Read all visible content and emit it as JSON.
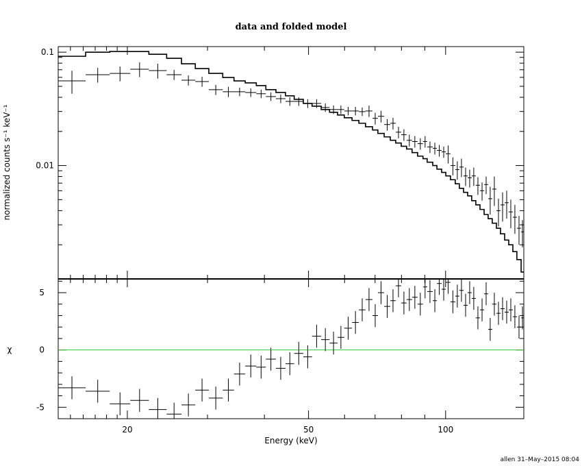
{
  "chart_data": [
    {
      "type": "spectrum",
      "title": "data and folded model",
      "ylabel": "normalized counts s⁻¹ keV⁻¹",
      "ylog": true,
      "ylim": [
        0.001,
        0.112
      ],
      "yticks": [
        0.1,
        0.01
      ],
      "yminor_ticks": [
        0.002,
        0.003,
        0.004,
        0.005,
        0.006,
        0.007,
        0.008,
        0.009,
        0.02,
        0.03,
        0.04,
        0.05,
        0.06,
        0.07,
        0.08,
        0.09
      ],
      "bins": [
        14.1,
        16.2,
        18.3,
        20.3,
        22.3,
        24.4,
        26.3,
        28.2,
        30.2,
        32.4,
        34.3,
        36.3,
        38.4,
        40.3,
        42.4,
        44.5,
        46.5,
        48.7,
        50.9,
        53.3,
        55.6,
        57.9,
        59.9,
        62.3,
        64.5,
        66.7,
        69.1,
        71.0,
        73.3,
        75.6,
        77.7,
        79.9,
        82.1,
        84.4,
        86.8,
        89.2,
        91.1,
        93.7,
        95.7,
        98.0,
        100.1,
        102.5,
        105.0,
        107.2,
        109.5,
        111.8,
        114.1,
        116.5,
        119.0,
        121.5,
        124.0,
        126.6,
        129.3,
        132.0,
        134.8,
        137.6,
        140.5,
        143.4,
        146.5,
        148.5
      ],
      "data": [
        0.0558,
        0.0633,
        0.065,
        0.0707,
        0.0688,
        0.0633,
        0.0566,
        0.0551,
        0.0467,
        0.0448,
        0.0448,
        0.0441,
        0.043,
        0.0406,
        0.0389,
        0.0368,
        0.0368,
        0.0353,
        0.0353,
        0.0325,
        0.0312,
        0.0312,
        0.0303,
        0.0303,
        0.0299,
        0.0303,
        0.0261,
        0.0272,
        0.023,
        0.0236,
        0.0197,
        0.0187,
        0.0167,
        0.0163,
        0.0156,
        0.0163,
        0.0146,
        0.0142,
        0.0136,
        0.0132,
        0.0127,
        0.01,
        0.0092,
        0.0097,
        0.0081,
        0.0078,
        0.0081,
        0.0067,
        0.006,
        0.0068,
        0.0051,
        0.0062,
        0.004,
        0.0045,
        0.0047,
        0.0039,
        0.0035,
        0.0028,
        0.0026
      ],
      "data_errors": [
        0.0128,
        0.0094,
        0.0097,
        0.0105,
        0.0103,
        0.0065,
        0.0058,
        0.0056,
        0.0048,
        0.0046,
        0.0039,
        0.0038,
        0.0037,
        0.0035,
        0.0034,
        0.0032,
        0.0032,
        0.0031,
        0.0031,
        0.0028,
        0.0027,
        0.0027,
        0.0026,
        0.0026,
        0.0026,
        0.0035,
        0.0031,
        0.0032,
        0.0027,
        0.0028,
        0.0023,
        0.0022,
        0.002,
        0.0019,
        0.0018,
        0.0019,
        0.0017,
        0.0017,
        0.0016,
        0.0015,
        0.0023,
        0.0018,
        0.0017,
        0.0018,
        0.0015,
        0.0014,
        0.0015,
        0.0012,
        0.0011,
        0.0012,
        0.0014,
        0.0018,
        0.0011,
        0.0013,
        0.0013,
        0.0011,
        0.001,
        0.0008,
        0.0007
      ],
      "model": [
        0.092,
        0.1,
        0.1014,
        0.1014,
        0.0959,
        0.0883,
        0.079,
        0.0717,
        0.065,
        0.0598,
        0.0558,
        0.0536,
        0.0507,
        0.0467,
        0.0441,
        0.0412,
        0.0384,
        0.0353,
        0.0334,
        0.0312,
        0.0295,
        0.0279,
        0.0264,
        0.025,
        0.0236,
        0.022,
        0.0206,
        0.0192,
        0.0179,
        0.0167,
        0.0158,
        0.0148,
        0.014,
        0.013,
        0.0121,
        0.0115,
        0.0107,
        0.01,
        0.0093,
        0.0087,
        0.0081,
        0.0075,
        0.0069,
        0.0063,
        0.0058,
        0.0054,
        0.0049,
        0.0045,
        0.0041,
        0.0037,
        0.0034,
        0.0031,
        0.0028,
        0.0025,
        0.0022,
        0.002,
        0.00174,
        0.00148,
        0.00115
      ],
      "color": "#000000"
    },
    {
      "type": "residuals",
      "xlabel": "Energy (keV)",
      "ylabel": "χ",
      "xlog": true,
      "xlim": [
        14.1,
        148.5
      ],
      "xticks": [
        20,
        50,
        100
      ],
      "xminor_ticks": [
        15,
        16,
        17,
        18,
        19,
        30,
        40,
        60,
        70,
        80,
        90
      ],
      "ylim": [
        -6,
        6.2
      ],
      "yticks": [
        -5,
        0,
        5
      ],
      "yminor_ticks": [
        -4,
        -3,
        -2,
        -1,
        1,
        2,
        3,
        4,
        6
      ],
      "values": [
        -3.3,
        -3.6,
        -4.7,
        -4.4,
        -5.2,
        -5.6,
        -4.8,
        -3.5,
        -4.2,
        -3.5,
        -2.1,
        -1.4,
        -1.5,
        -0.8,
        -1.6,
        -1.2,
        -0.3,
        -0.6,
        1.2,
        0.9,
        0.6,
        1.1,
        1.9,
        2.4,
        3.5,
        4.4,
        3.0,
        5.0,
        3.8,
        4.3,
        5.6,
        4.1,
        4.4,
        4.6,
        4.0,
        5.5,
        5.1,
        4.3,
        5.8,
        5.3,
        5.9,
        4.2,
        4.7,
        5.2,
        3.9,
        5.0,
        4.5,
        2.8,
        3.5,
        4.9,
        1.8,
        4.0,
        3.2,
        3.6,
        3.3,
        3.5,
        2.9,
        2.0,
        2.8
      ],
      "errors": [
        1,
        1,
        1,
        1,
        1,
        1,
        1,
        1,
        1,
        1,
        1,
        1,
        1,
        1,
        1,
        1,
        1,
        1,
        1,
        1,
        1,
        1,
        1,
        1,
        1,
        1,
        1,
        1,
        1,
        1,
        1,
        1,
        1,
        1,
        1,
        1,
        1,
        1,
        1,
        1,
        1,
        1,
        1,
        1,
        1,
        1,
        1,
        1,
        1,
        1,
        1,
        1,
        1,
        1,
        1,
        1,
        1,
        1,
        1
      ],
      "zero_line_color": "#33cc33",
      "color": "#000000"
    }
  ],
  "footer": "allen 31–May–2015 08:04"
}
